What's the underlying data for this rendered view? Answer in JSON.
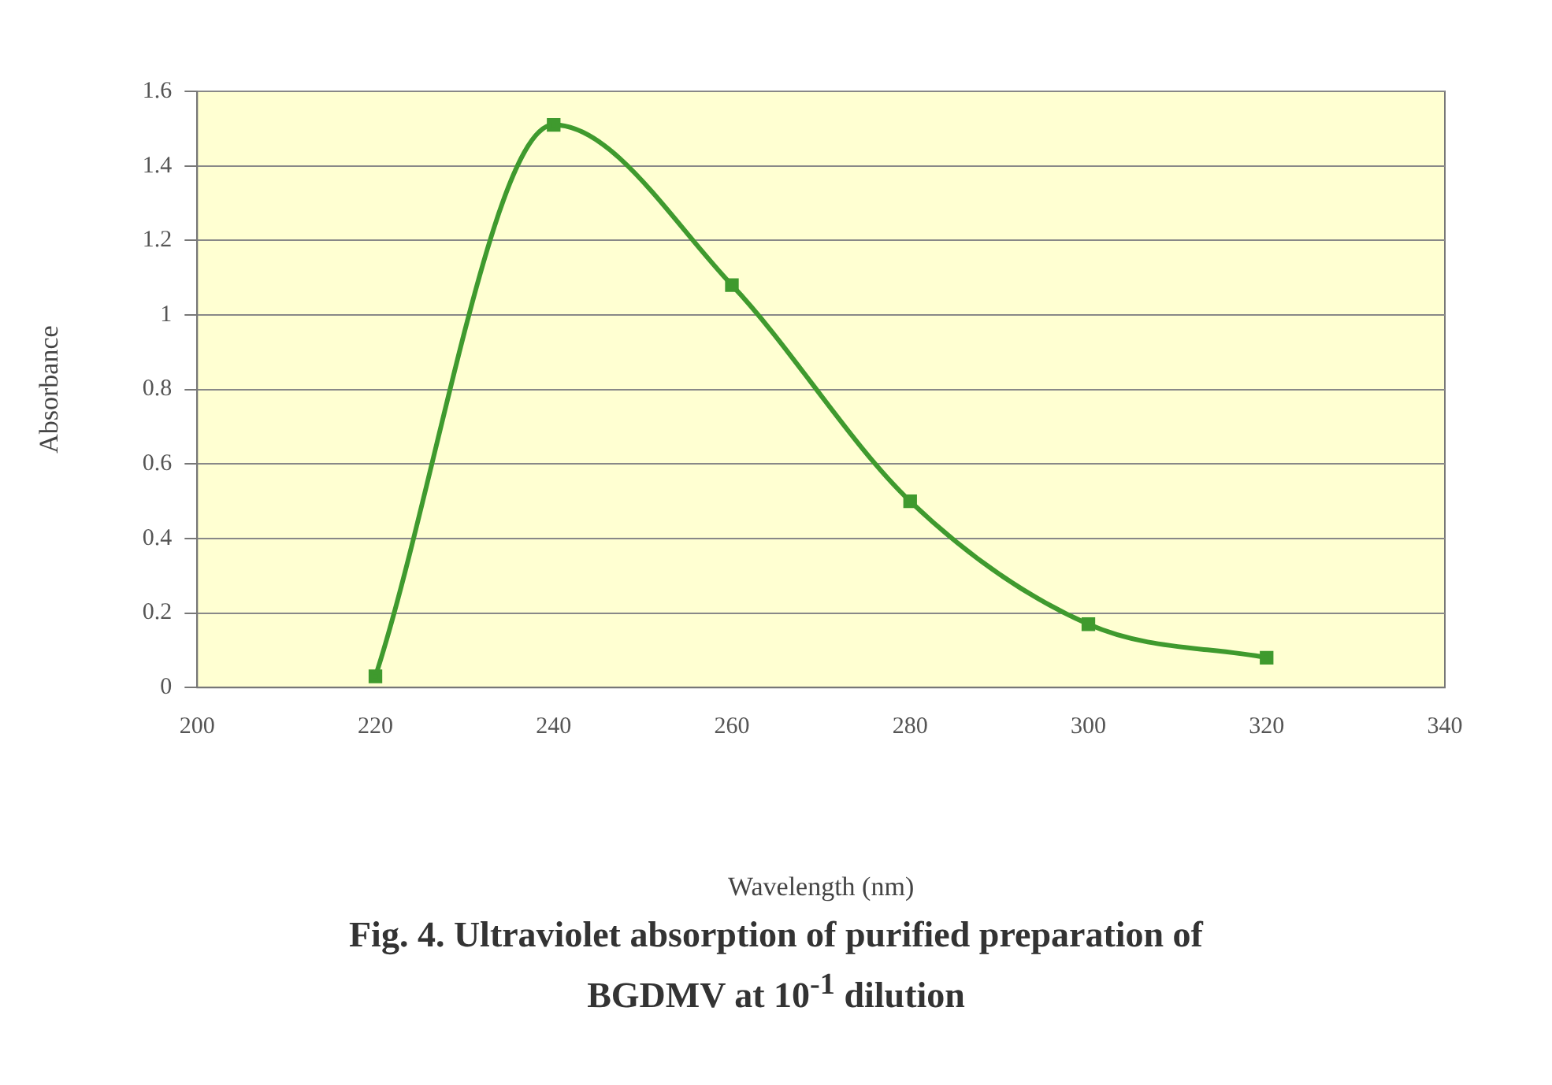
{
  "chart_data": {
    "type": "line",
    "title": "Fig. 4. Ultraviolet absorption of purified preparation of BGDMV at 10$^{-1}$ dilution",
    "xlabel": "Wavelength (nm)",
    "ylabel": "Absorbance",
    "x": [
      220,
      240,
      260,
      280,
      300,
      320
    ],
    "series": [
      {
        "color": "#3f9a2e",
        "values": [
          0.03,
          1.51,
          1.08,
          0.5,
          0.17,
          0.08
        ]
      }
    ],
    "xlim": [
      200,
      340
    ],
    "xticks": [
      200,
      220,
      240,
      260,
      280,
      300,
      320,
      340
    ],
    "ylim": [
      0,
      1.6
    ],
    "yticks": [
      0,
      0.2,
      0.4,
      0.6,
      0.8,
      1,
      1.2,
      1.4,
      1.6
    ],
    "grid": "y",
    "marker": "square",
    "line_style": "solid",
    "legend": false
  }
}
